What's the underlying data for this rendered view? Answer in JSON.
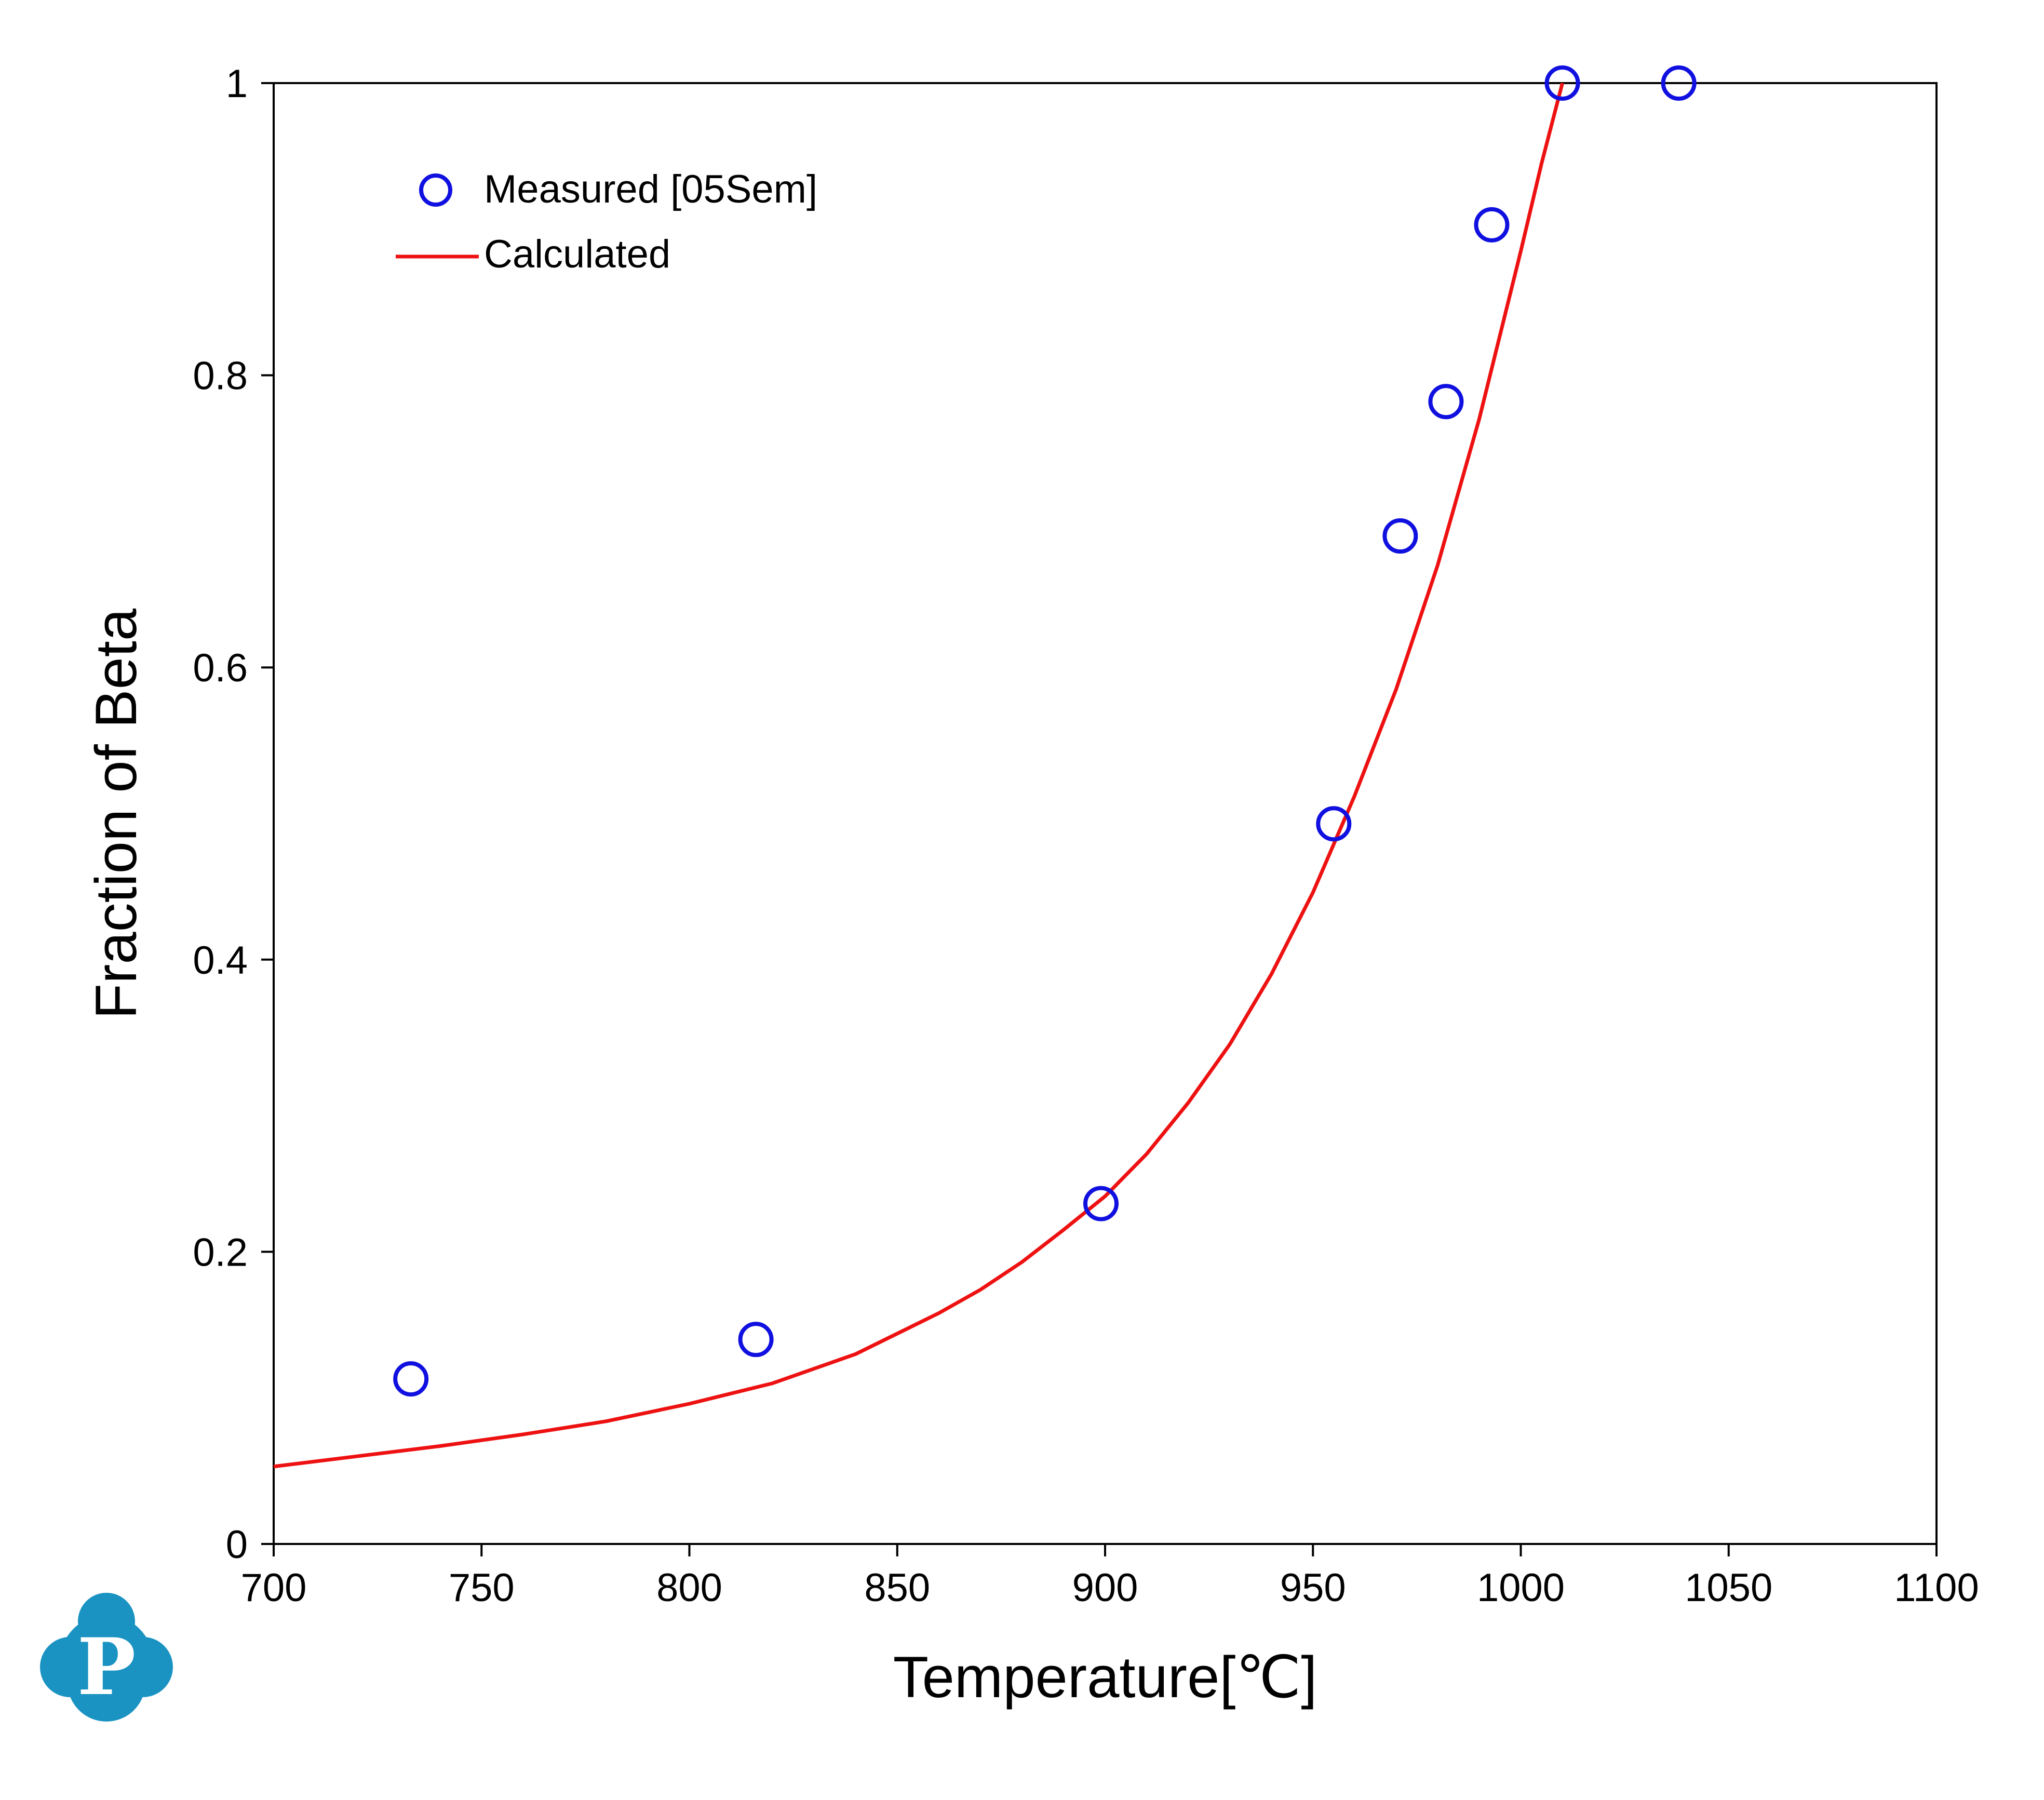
{
  "chart_data": {
    "type": "scatter",
    "title": "",
    "xlabel": "Temperature[℃]",
    "ylabel": "Fraction of Beta",
    "xlim": [
      700,
      1100
    ],
    "ylim": [
      0,
      1
    ],
    "x_ticks": [
      700,
      750,
      800,
      850,
      900,
      950,
      1000,
      1050,
      1100
    ],
    "y_ticks": [
      0,
      0.2,
      0.4,
      0.6,
      0.8,
      1
    ],
    "x_tick_labels": [
      "700",
      "750",
      "800",
      "850",
      "900",
      "950",
      "1000",
      "1050",
      "1100"
    ],
    "y_tick_labels": [
      "0",
      "0.2",
      "0.4",
      "0.6",
      "0.8",
      "1"
    ],
    "grid": false,
    "legend_position": "top-left",
    "series": [
      {
        "name": "Measured [05Sem]",
        "kind": "scatter",
        "marker": "open-circle",
        "color": "#1010e0",
        "x": [
          733,
          816,
          899,
          955,
          971,
          982,
          993,
          1010,
          1038
        ],
        "y": [
          0.113,
          0.14,
          0.233,
          0.493,
          0.69,
          0.782,
          0.903,
          1.0,
          1.0
        ]
      },
      {
        "name": "Calculated",
        "kind": "line",
        "color": "#ee1111",
        "x": [
          700,
          720,
          740,
          760,
          780,
          800,
          820,
          840,
          860,
          870,
          880,
          890,
          900,
          910,
          920,
          930,
          940,
          950,
          960,
          970,
          980,
          990,
          1000,
          1005,
          1010
        ],
        "y": [
          0.053,
          0.06,
          0.067,
          0.075,
          0.084,
          0.096,
          0.11,
          0.13,
          0.158,
          0.174,
          0.193,
          0.215,
          0.238,
          0.267,
          0.302,
          0.342,
          0.39,
          0.446,
          0.512,
          0.585,
          0.67,
          0.77,
          0.885,
          0.945,
          1.0
        ]
      }
    ]
  },
  "logo": {
    "letter": "P",
    "color": "#1a93c2"
  }
}
